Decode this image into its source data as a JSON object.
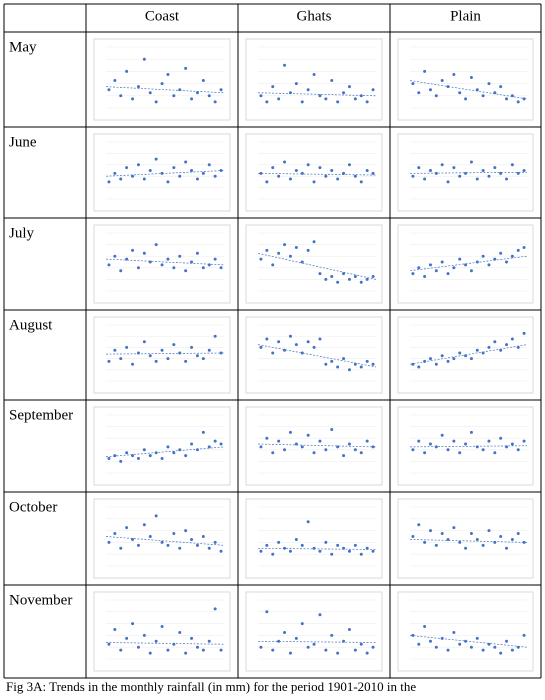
{
  "header": {
    "columns": [
      "Coast",
      "Ghats",
      "Plain"
    ]
  },
  "rows": [
    {
      "label": "May",
      "cells": [
        {
          "values": [
            30,
            45,
            20,
            60,
            15,
            35,
            80,
            25,
            10,
            40,
            55,
            20,
            30,
            65,
            15,
            25,
            45,
            20,
            10,
            30
          ],
          "trend": [
            35,
            25
          ]
        },
        {
          "values": [
            20,
            10,
            35,
            15,
            70,
            25,
            40,
            10,
            30,
            55,
            20,
            15,
            45,
            10,
            25,
            35,
            15,
            20,
            10,
            30
          ],
          "trend": [
            25,
            20
          ]
        },
        {
          "values": [
            40,
            25,
            60,
            30,
            20,
            45,
            35,
            55,
            25,
            15,
            50,
            30,
            20,
            40,
            25,
            35,
            15,
            20,
            10,
            15
          ],
          "trend": [
            45,
            15
          ]
        }
      ]
    },
    {
      "label": "June",
      "cells": [
        {
          "values": [
            30,
            45,
            35,
            55,
            40,
            60,
            35,
            50,
            70,
            45,
            30,
            55,
            40,
            65,
            50,
            35,
            45,
            60,
            40,
            50
          ],
          "trend": [
            40,
            50
          ]
        },
        {
          "values": [
            45,
            30,
            55,
            40,
            65,
            35,
            50,
            45,
            60,
            30,
            55,
            40,
            50,
            35,
            45,
            60,
            40,
            30,
            50,
            45
          ],
          "trend": [
            45,
            42
          ]
        },
        {
          "values": [
            40,
            55,
            35,
            50,
            45,
            60,
            30,
            55,
            40,
            45,
            65,
            35,
            50,
            40,
            55,
            45,
            35,
            60,
            45,
            50
          ],
          "trend": [
            45,
            47
          ]
        }
      ]
    },
    {
      "label": "July",
      "cells": [
        {
          "values": [
            45,
            60,
            35,
            55,
            70,
            40,
            65,
            50,
            80,
            45,
            55,
            40,
            60,
            35,
            50,
            65,
            40,
            45,
            55,
            40
          ],
          "trend": [
            55,
            45
          ]
        },
        {
          "values": [
            55,
            70,
            45,
            65,
            80,
            60,
            75,
            50,
            70,
            85,
            30,
            20,
            25,
            15,
            30,
            20,
            25,
            15,
            20,
            25
          ],
          "trend": [
            65,
            20
          ]
        },
        {
          "values": [
            30,
            40,
            25,
            45,
            35,
            50,
            30,
            40,
            55,
            45,
            35,
            50,
            60,
            45,
            55,
            65,
            50,
            60,
            70,
            75
          ],
          "trend": [
            35,
            60
          ]
        }
      ]
    },
    {
      "label": "August",
      "cells": [
        {
          "values": [
            35,
            55,
            40,
            60,
            30,
            50,
            70,
            45,
            35,
            55,
            40,
            65,
            50,
            35,
            60,
            45,
            40,
            55,
            80,
            50
          ],
          "trend": [
            48,
            50
          ]
        },
        {
          "values": [
            60,
            75,
            50,
            70,
            55,
            80,
            65,
            50,
            70,
            60,
            75,
            30,
            35,
            25,
            40,
            20,
            30,
            25,
            35,
            30
          ],
          "trend": [
            65,
            25
          ]
        },
        {
          "values": [
            30,
            25,
            35,
            40,
            30,
            45,
            35,
            40,
            50,
            45,
            40,
            55,
            50,
            60,
            70,
            55,
            65,
            75,
            60,
            85
          ],
          "trend": [
            30,
            65
          ]
        }
      ]
    },
    {
      "label": "September",
      "cells": [
        {
          "values": [
            25,
            30,
            20,
            35,
            30,
            25,
            40,
            30,
            35,
            25,
            45,
            35,
            40,
            30,
            50,
            40,
            70,
            45,
            55,
            50
          ],
          "trend": [
            28,
            45
          ]
        },
        {
          "values": [
            45,
            60,
            35,
            55,
            40,
            70,
            50,
            45,
            65,
            35,
            55,
            40,
            75,
            45,
            30,
            50,
            40,
            35,
            55,
            45
          ],
          "trend": [
            50,
            45
          ]
        },
        {
          "values": [
            40,
            55,
            35,
            50,
            45,
            65,
            40,
            55,
            35,
            50,
            70,
            45,
            40,
            55,
            35,
            60,
            45,
            50,
            40,
            55
          ],
          "trend": [
            45,
            47
          ]
        }
      ]
    },
    {
      "label": "October",
      "cells": [
        {
          "values": [
            40,
            55,
            30,
            65,
            45,
            35,
            70,
            50,
            85,
            40,
            35,
            55,
            30,
            60,
            45,
            35,
            50,
            30,
            40,
            25
          ],
          "trend": [
            50,
            35
          ]
        },
        {
          "values": [
            25,
            35,
            20,
            40,
            30,
            25,
            45,
            35,
            75,
            30,
            25,
            40,
            20,
            35,
            30,
            25,
            35,
            20,
            30,
            25
          ],
          "trend": [
            30,
            28
          ]
        },
        {
          "values": [
            50,
            70,
            40,
            60,
            35,
            55,
            45,
            65,
            40,
            30,
            55,
            45,
            35,
            60,
            40,
            50,
            30,
            45,
            55,
            40
          ],
          "trend": [
            45,
            40
          ]
        }
      ]
    },
    {
      "label": "November",
      "cells": [
        {
          "values": [
            25,
            50,
            15,
            35,
            60,
            20,
            40,
            10,
            30,
            55,
            15,
            25,
            45,
            10,
            35,
            20,
            15,
            30,
            85,
            15
          ],
          "trend": [
            28,
            25
          ]
        },
        {
          "values": [
            20,
            80,
            15,
            30,
            45,
            10,
            35,
            60,
            20,
            25,
            75,
            15,
            40,
            10,
            30,
            50,
            15,
            25,
            10,
            20
          ],
          "trend": [
            30,
            28
          ]
        },
        {
          "values": [
            40,
            25,
            55,
            30,
            20,
            35,
            15,
            45,
            25,
            30,
            20,
            35,
            15,
            25,
            20,
            10,
            30,
            15,
            20,
            40
          ],
          "trend": [
            40,
            20
          ]
        }
      ]
    }
  ],
  "caption": "Fig 3A: Trends in the monthly rainfall (in mm) for the period 1901-2010 in the"
}
